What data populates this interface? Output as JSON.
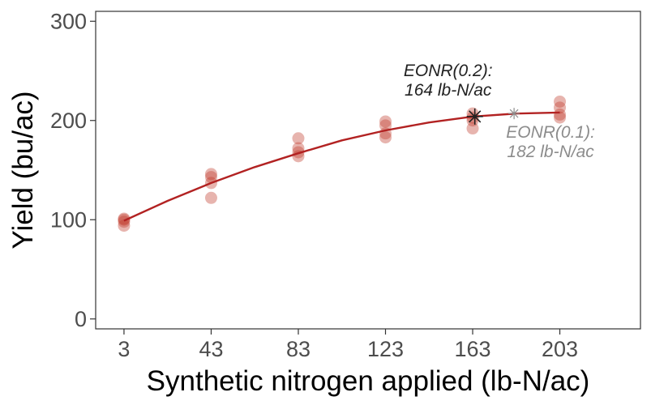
{
  "chart_data": {
    "type": "scatter",
    "xlabel": "Synthetic nitrogen applied (lb-N/ac)",
    "ylabel": "Yield (bu/ac)",
    "xlim": [
      -10,
      240
    ],
    "ylim": [
      -10,
      310
    ],
    "x_ticks": [
      3,
      43,
      83,
      123,
      163,
      203
    ],
    "y_ticks": [
      0,
      100,
      200,
      300
    ],
    "grid": false,
    "legend": "none",
    "colors": {
      "points": "#c0392b",
      "curve": "#b22222",
      "eonr_primary": "#222222",
      "eonr_secondary": "#8c8c8c"
    },
    "points": [
      {
        "x": 3,
        "y": 100
      },
      {
        "x": 3,
        "y": 98
      },
      {
        "x": 3,
        "y": 94
      },
      {
        "x": 3,
        "y": 101
      },
      {
        "x": 43,
        "y": 146
      },
      {
        "x": 43,
        "y": 143
      },
      {
        "x": 43,
        "y": 137
      },
      {
        "x": 43,
        "y": 122
      },
      {
        "x": 83,
        "y": 182
      },
      {
        "x": 83,
        "y": 172
      },
      {
        "x": 83,
        "y": 168
      },
      {
        "x": 83,
        "y": 164
      },
      {
        "x": 123,
        "y": 199
      },
      {
        "x": 123,
        "y": 195
      },
      {
        "x": 123,
        "y": 187
      },
      {
        "x": 123,
        "y": 183
      },
      {
        "x": 163,
        "y": 207
      },
      {
        "x": 163,
        "y": 203
      },
      {
        "x": 163,
        "y": 200
      },
      {
        "x": 163,
        "y": 192
      },
      {
        "x": 203,
        "y": 219
      },
      {
        "x": 203,
        "y": 213
      },
      {
        "x": 203,
        "y": 206
      },
      {
        "x": 203,
        "y": 203
      }
    ],
    "fit_curve": {
      "x": [
        3,
        23,
        43,
        63,
        83,
        103,
        123,
        143,
        163,
        183,
        203
      ],
      "y": [
        99,
        119,
        137,
        153,
        167,
        180,
        190,
        198,
        204,
        207,
        208
      ]
    },
    "eonr": [
      {
        "label": "EONR(0.2):",
        "value_text": "164 lb-N/ac",
        "x": 164,
        "y": 204,
        "style": "primary"
      },
      {
        "label": "EONR(0.1):",
        "value_text": "182 lb-N/ac",
        "x": 182,
        "y": 207,
        "style": "secondary"
      }
    ]
  }
}
